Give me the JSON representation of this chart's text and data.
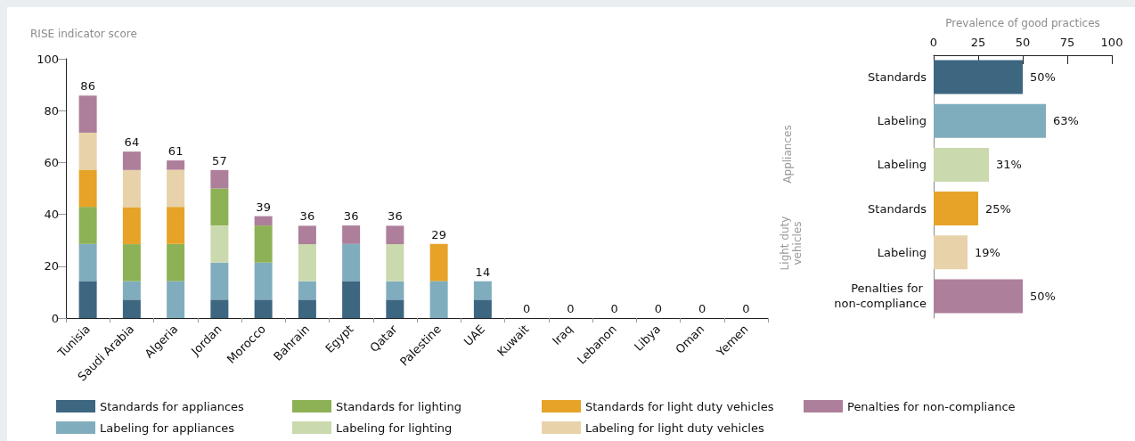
{
  "chart_data": [
    {
      "type": "bar",
      "stacked": true,
      "ylabel": "RISE indicator score",
      "categories": [
        "Tunisia",
        "Saudi Arabia",
        "Algeria",
        "Jordan",
        "Morocco",
        "Bahrain",
        "Egypt",
        "Qatar",
        "Palestine",
        "UAE",
        "Kuwait",
        "Iraq",
        "Lebanon",
        "Libya",
        "Oman",
        "Yemen"
      ],
      "series": [
        {
          "name": "Standards for appliances",
          "color": "#3d6680",
          "values": [
            14.3,
            7.1,
            0,
            7.1,
            7.1,
            7.1,
            14.3,
            7.1,
            0,
            7.1,
            0,
            0,
            0,
            0,
            0,
            0
          ]
        },
        {
          "name": "Labeling for appliances",
          "color": "#80adbd",
          "values": [
            14.3,
            7.1,
            14.3,
            14.3,
            14.3,
            7.1,
            14.3,
            7.1,
            14.3,
            7.1,
            0,
            0,
            0,
            0,
            0,
            0
          ]
        },
        {
          "name": "Labeling for lighting",
          "color": "#cbd9ae",
          "values": [
            0,
            0,
            0,
            14.3,
            0,
            14.3,
            0,
            14.3,
            0,
            0,
            0,
            0,
            0,
            0,
            0,
            0
          ]
        },
        {
          "name": "Standards for lighting",
          "color": "#8db255",
          "values": [
            14.3,
            14.3,
            14.3,
            14.3,
            14.3,
            0,
            0,
            0,
            0,
            0,
            0,
            0,
            0,
            0,
            0,
            0
          ]
        },
        {
          "name": "Standards for light duty vehicles",
          "color": "#e6a328",
          "values": [
            14.3,
            14.3,
            14.3,
            0,
            0,
            0,
            0,
            0,
            14.3,
            0,
            0,
            0,
            0,
            0,
            0,
            0
          ]
        },
        {
          "name": "Labeling for light duty vehicles",
          "color": "#e8d2aa",
          "values": [
            14.3,
            14.3,
            14.3,
            0,
            0,
            0,
            0,
            0,
            0,
            0,
            0,
            0,
            0,
            0,
            0,
            0
          ]
        },
        {
          "name": "Penalties for non-compliance",
          "color": "#ad7f9a",
          "values": [
            14.3,
            7.1,
            3.6,
            7.1,
            3.6,
            7.1,
            7.1,
            7.1,
            0,
            0,
            0,
            0,
            0,
            0,
            0,
            0
          ]
        }
      ],
      "totals": [
        "86",
        "64",
        "61",
        "57",
        "39",
        "36",
        "36",
        "36",
        "29",
        "14",
        "0",
        "0",
        "0",
        "0",
        "0",
        "0"
      ],
      "ylim": [
        0,
        100
      ],
      "yticks": [
        0,
        20,
        40,
        60,
        80,
        100
      ],
      "grid": false,
      "legend": "bottom"
    },
    {
      "type": "bar",
      "orientation": "horizontal",
      "xlabel": "Prevalence of good practices",
      "categories": [
        "Standards",
        "Labeling",
        "Labeling",
        "Standards",
        "Labeling",
        "Penalties for non-compliance"
      ],
      "values": [
        50,
        63,
        31,
        25,
        19,
        50
      ],
      "colors": [
        "#3d6680",
        "#80adbd",
        "#cbd9ae",
        "#e6a328",
        "#e8d2aa",
        "#ad7f9a"
      ],
      "value_labels": [
        "50%",
        "63%",
        "31%",
        "25%",
        "19%",
        "50%"
      ],
      "annotations": [
        "Appliances",
        "Light duty vehicles"
      ],
      "xlim": [
        0,
        100
      ],
      "xticks": [
        0,
        25,
        50,
        75,
        100
      ],
      "grid": false,
      "legend": false
    }
  ]
}
